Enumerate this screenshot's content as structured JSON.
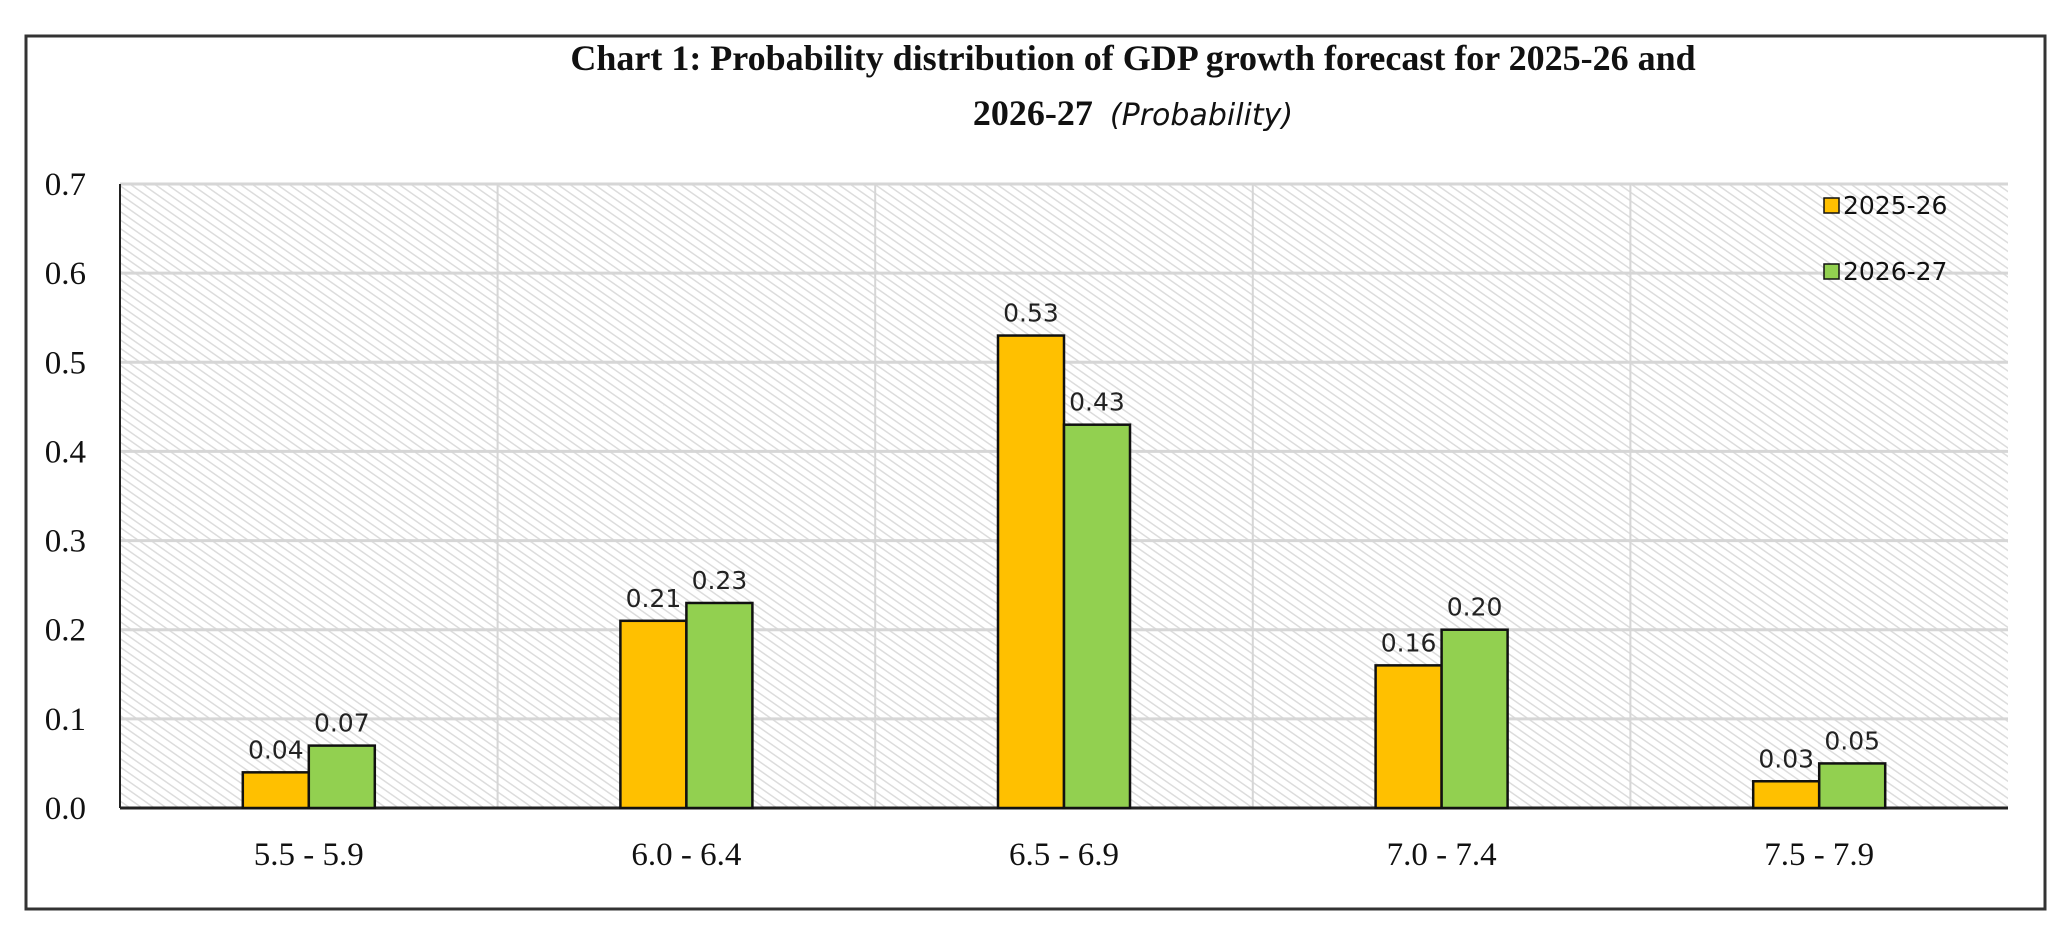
{
  "chart_data": {
    "type": "bar",
    "title": "Chart 1: Probability distribution of  GDP growth forecast for 2025-26 and",
    "title_line2": "2026-27",
    "title_suffix": "(Probability)",
    "categories": [
      "5.5 - 5.9",
      "6.0 - 6.4",
      "6.5 - 6.9",
      "7.0 - 7.4",
      "7.5 - 7.9"
    ],
    "series": [
      {
        "name": "2025-26",
        "color": "#FFC000",
        "values": [
          0.04,
          0.21,
          0.53,
          0.16,
          0.03
        ],
        "labels": [
          "0.04",
          "0.21",
          "0.53",
          "0.16",
          "0.03"
        ]
      },
      {
        "name": "2026-27",
        "color": "#92D050",
        "values": [
          0.07,
          0.23,
          0.43,
          0.2,
          0.05
        ],
        "labels": [
          "0.07",
          "0.23",
          "0.43",
          "0.20",
          "0.05"
        ]
      }
    ],
    "ylim": [
      0,
      0.7
    ],
    "yticks": [
      "0.0",
      "0.1",
      "0.2",
      "0.3",
      "0.4",
      "0.5",
      "0.6",
      "0.7"
    ],
    "xlabel": "",
    "ylabel": "",
    "grid": true,
    "legend_position": "top-right"
  }
}
